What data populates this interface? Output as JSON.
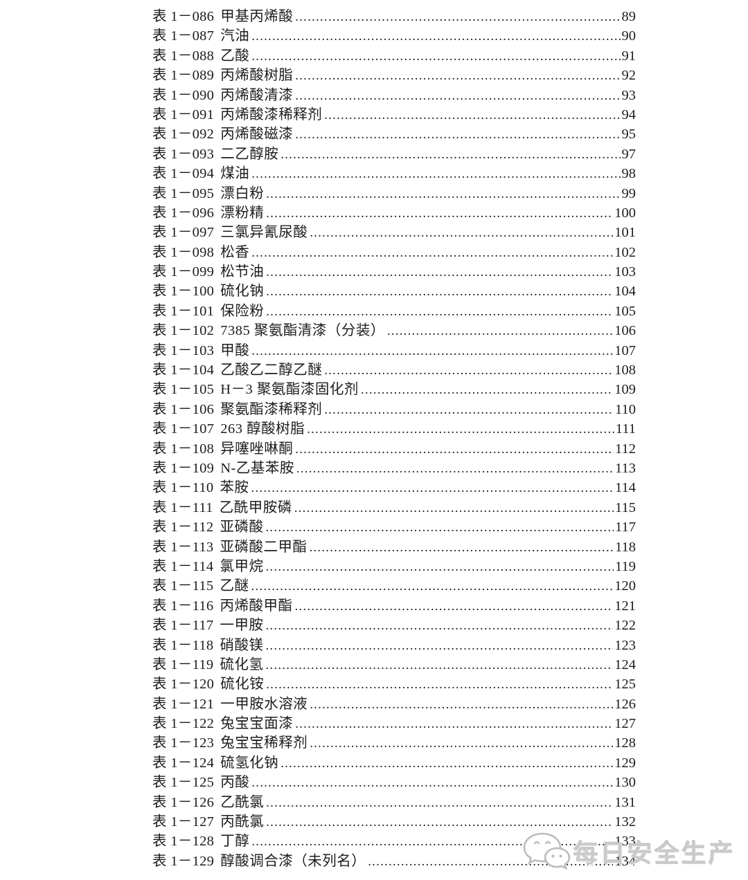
{
  "page": {
    "background": "#ffffff",
    "text_color": "#1d1d1d"
  },
  "toc": {
    "entries": [
      {
        "label": "表 1－086",
        "name": "甲基丙烯酸",
        "page": "89"
      },
      {
        "label": "表 1－087",
        "name": "汽油",
        "page": "90"
      },
      {
        "label": "表 1－088",
        "name": "乙酸",
        "page": "91"
      },
      {
        "label": "表 1－089",
        "name": "丙烯酸树脂",
        "page": "92"
      },
      {
        "label": "表 1－090",
        "name": "丙烯酸清漆",
        "page": "93"
      },
      {
        "label": "表 1－091",
        "name": "丙烯酸漆稀释剂",
        "page": "94"
      },
      {
        "label": "表 1－092",
        "name": "丙烯酸磁漆",
        "page": "95"
      },
      {
        "label": "表 1－093",
        "name": "二乙醇胺",
        "page": "97"
      },
      {
        "label": "表 1－094",
        "name": "煤油",
        "page": "98"
      },
      {
        "label": "表 1－095",
        "name": "漂白粉",
        "page": "99"
      },
      {
        "label": "表 1－096",
        "name": "漂粉精",
        "page": "100"
      },
      {
        "label": "表 1－097",
        "name": "三氯异氰尿酸",
        "page": "101"
      },
      {
        "label": "表 1－098",
        "name": "松香",
        "page": "102"
      },
      {
        "label": "表 1－099",
        "name": "松节油",
        "page": "103"
      },
      {
        "label": "表 1－100",
        "name": "硫化钠",
        "page": "104"
      },
      {
        "label": "表 1－101",
        "name": "保险粉",
        "page": "105"
      },
      {
        "label": "表 1－102",
        "name": "7385 聚氨酯清漆（分装）",
        "page": "106"
      },
      {
        "label": "表 1－103",
        "name": "甲酸",
        "page": "107"
      },
      {
        "label": "表 1－104",
        "name": "乙酸乙二醇乙醚",
        "page": "108"
      },
      {
        "label": "表 1－105",
        "name": "H－3 聚氨酯漆固化剂",
        "page": "109"
      },
      {
        "label": "表 1－106",
        "name": "聚氨酯漆稀释剂",
        "page": "110"
      },
      {
        "label": "表 1－107",
        "name": "263 醇酸树脂",
        "page": "111"
      },
      {
        "label": "表 1－108",
        "name": "异噻唑啉酮",
        "page": "112"
      },
      {
        "label": "表 1－109",
        "name": "N-乙基苯胺",
        "page": "113"
      },
      {
        "label": "表 1－110",
        "name": "苯胺",
        "page": "114"
      },
      {
        "label": "表 1－111",
        "name": "乙酰甲胺磷",
        "page": "115"
      },
      {
        "label": "表 1－112",
        "name": "亚磷酸",
        "page": "117"
      },
      {
        "label": "表 1－113",
        "name": "亚磷酸二甲酯",
        "page": "118"
      },
      {
        "label": "表 1－114",
        "name": "氯甲烷",
        "page": "119"
      },
      {
        "label": "表 1－115",
        "name": "乙醚",
        "page": "120"
      },
      {
        "label": "表 1－116",
        "name": "丙烯酸甲酯",
        "page": "121"
      },
      {
        "label": "表 1－117",
        "name": "一甲胺",
        "page": "122"
      },
      {
        "label": "表 1－118",
        "name": "硝酸镁",
        "page": "123"
      },
      {
        "label": "表 1－119",
        "name": "硫化氢",
        "page": "124"
      },
      {
        "label": "表 1－120",
        "name": "硫化铵",
        "page": "125"
      },
      {
        "label": "表 1－121",
        "name": "一甲胺水溶液",
        "page": "126"
      },
      {
        "label": "表 1－122",
        "name": "兔宝宝面漆",
        "page": "127"
      },
      {
        "label": "表 1－123",
        "name": "兔宝宝稀释剂",
        "page": "128"
      },
      {
        "label": "表 1－124",
        "name": "硫氢化钠",
        "page": "129"
      },
      {
        "label": "表 1－125",
        "name": "丙酸",
        "page": "130"
      },
      {
        "label": "表 1－126",
        "name": "乙酰氯",
        "page": "131"
      },
      {
        "label": "表 1－127",
        "name": "丙酰氯",
        "page": "132"
      },
      {
        "label": "表 1－128",
        "name": "丁醇",
        "page": "133"
      },
      {
        "label": "表 1－129",
        "name": "醇酸调合漆（未列名）",
        "page": "134"
      }
    ]
  },
  "watermark": {
    "icon": "wechat-icon",
    "text": "每日安全生产",
    "color": "#cbcbcb"
  }
}
